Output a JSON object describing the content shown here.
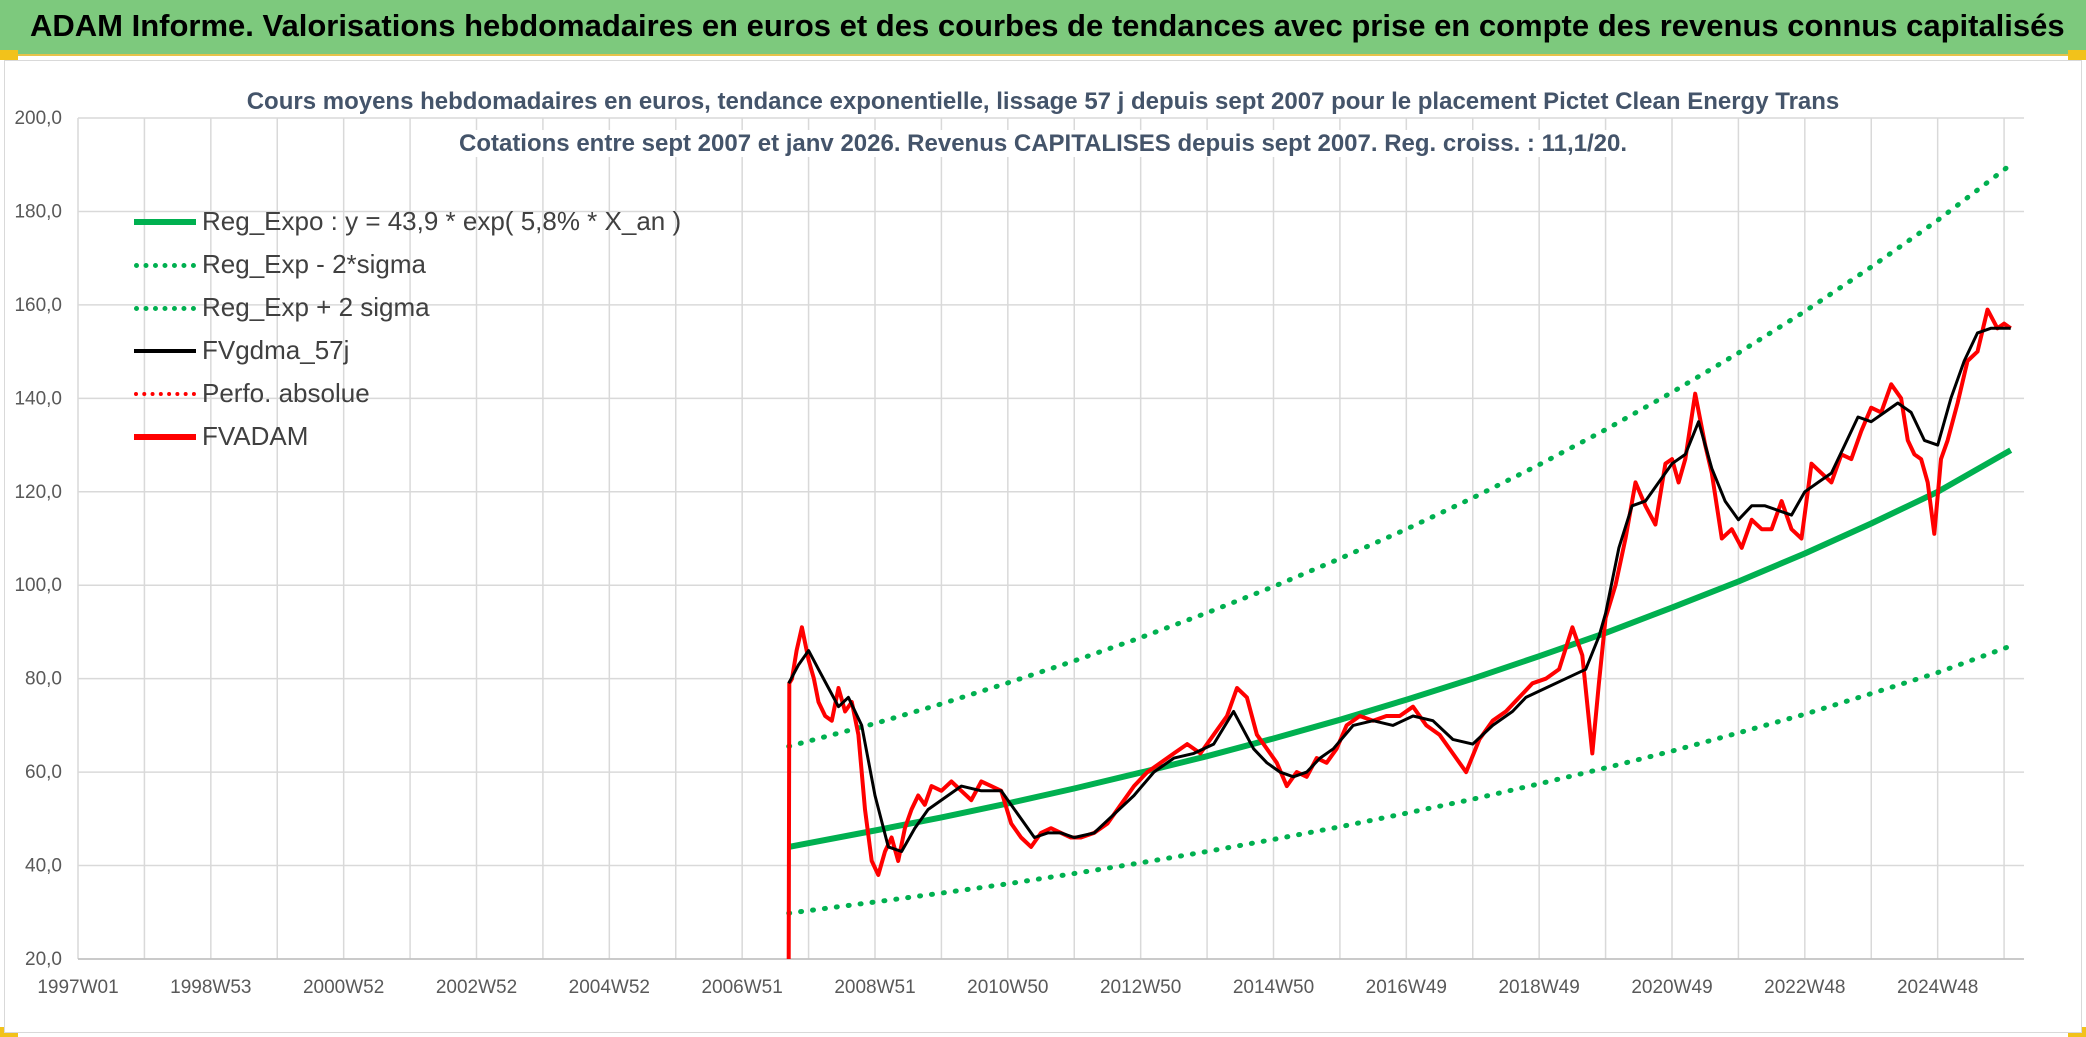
{
  "header": {
    "title": "ADAM Informe. Valorisations hebdomadaires en euros et des courbes de tendances avec prise en compte des revenus connus capitalisés"
  },
  "colors": {
    "banner": "#7dc97d",
    "green": "#00b050",
    "red": "#ff0000",
    "black": "#000000",
    "grid": "#d9d9d9"
  },
  "chart_data": {
    "type": "line",
    "title": "Cours moyens hebdomadaires en euros, tendance exponentielle, lissage 57 j depuis sept 2007 pour le placement Pictet Clean Energy Trans",
    "subtitle": "Cotations entre sept 2007 et janv 2026. Revenus CAPITALISES depuis sept 2007. Reg. croiss. : 11,1/20.",
    "xlabel": "",
    "ylabel": "",
    "x_axis": {
      "type": "time",
      "unit": "year",
      "range": [
        1997.0,
        2026.3
      ],
      "tick_values": [
        1997.0,
        1998.0,
        1999.0,
        2000.0,
        2001.0,
        2002.0,
        2003.0,
        2004.0,
        2005.0,
        2006.0,
        2007.0,
        2008.0,
        2009.0,
        2010.0,
        2011.0,
        2012.0,
        2013.0,
        2014.0,
        2015.0,
        2016.0,
        2017.0,
        2018.0,
        2019.0,
        2020.0,
        2021.0,
        2022.0,
        2023.0,
        2024.0,
        2025.0,
        2026.0
      ],
      "tick_labels": [
        "1997W01",
        "1998W53",
        "2000W52",
        "2002W52",
        "2004W52",
        "2006W51",
        "2008W51",
        "2010W50",
        "2012W50",
        "2014W50",
        "2016W49",
        "2018W49",
        "2020W49",
        "2022W48",
        "2024W48"
      ],
      "labeled_tick_values": [
        1997.0,
        1999.0,
        2001.0,
        2003.0,
        2005.0,
        2007.0,
        2009.0,
        2011.0,
        2013.0,
        2015.0,
        2017.0,
        2019.0,
        2021.0,
        2023.0,
        2025.0
      ]
    },
    "y_axis": {
      "range": [
        20,
        200
      ],
      "ticks": [
        20,
        40,
        60,
        80,
        100,
        120,
        140,
        160,
        180,
        200
      ],
      "tick_labels": [
        "20,0",
        "40,0",
        "60,0",
        "80,0",
        "100,0",
        "120,0",
        "140,0",
        "160,0",
        "180,0",
        "200,0"
      ]
    },
    "grid": true,
    "legend_position": "top-left",
    "series": [
      {
        "name": "Reg_Expo : y = 43,9 * exp( 5,8% *  X_an )",
        "color": "#00b050",
        "style": "solid",
        "x": [
          2007.7,
          2009.0,
          2010.0,
          2011.0,
          2012.0,
          2013.0,
          2014.0,
          2015.0,
          2016.0,
          2017.0,
          2018.0,
          2019.0,
          2020.0,
          2021.0,
          2022.0,
          2023.0,
          2024.0,
          2025.0,
          2026.1
        ],
        "y": [
          44.0,
          47.5,
          50.3,
          53.3,
          56.5,
          59.9,
          63.4,
          67.2,
          71.2,
          75.5,
          80.0,
          84.8,
          89.8,
          95.2,
          100.8,
          106.8,
          113.2,
          120.0,
          128.9
        ]
      },
      {
        "name": "Reg_Exp - 2*sigma",
        "color": "#00b050",
        "style": "dotted",
        "x": [
          2007.7,
          2009.0,
          2010.0,
          2011.0,
          2012.0,
          2013.0,
          2014.0,
          2015.0,
          2016.0,
          2017.0,
          2018.0,
          2019.0,
          2020.0,
          2021.0,
          2022.0,
          2023.0,
          2024.0,
          2025.0,
          2026.1
        ],
        "y": [
          29.8,
          32.2,
          34.1,
          36.1,
          38.3,
          40.6,
          43.0,
          45.6,
          48.3,
          51.2,
          54.2,
          57.5,
          60.9,
          64.5,
          68.4,
          72.4,
          76.8,
          81.3,
          87.0
        ]
      },
      {
        "name": "Reg_Exp + 2 sigma",
        "color": "#00b050",
        "style": "dotted",
        "x": [
          2007.7,
          2009.0,
          2010.0,
          2011.0,
          2012.0,
          2013.0,
          2014.0,
          2015.0,
          2016.0,
          2017.0,
          2018.0,
          2019.0,
          2020.0,
          2021.0,
          2022.0,
          2023.0,
          2024.0,
          2025.0,
          2026.1
        ],
        "y": [
          65.5,
          70.4,
          74.6,
          79.1,
          83.8,
          88.8,
          94.1,
          99.7,
          105.7,
          112.0,
          118.7,
          125.8,
          133.3,
          141.3,
          149.7,
          158.6,
          168.1,
          178.1,
          190.0
        ]
      },
      {
        "name": "FVgdma_57j",
        "color": "#000000",
        "style": "solid",
        "x": [
          2007.7,
          2007.85,
          2008.0,
          2008.15,
          2008.3,
          2008.45,
          2008.6,
          2008.8,
          2009.0,
          2009.2,
          2009.4,
          2009.6,
          2009.8,
          2010.0,
          2010.3,
          2010.6,
          2010.9,
          2011.2,
          2011.4,
          2011.6,
          2011.8,
          2012.0,
          2012.3,
          2012.6,
          2012.9,
          2013.2,
          2013.5,
          2013.8,
          2014.1,
          2014.4,
          2014.7,
          2014.9,
          2015.1,
          2015.3,
          2015.5,
          2015.7,
          2015.9,
          2016.2,
          2016.5,
          2016.8,
          2017.1,
          2017.4,
          2017.7,
          2018.0,
          2018.3,
          2018.6,
          2018.8,
          2019.1,
          2019.4,
          2019.7,
          2019.9,
          2020.0,
          2020.2,
          2020.4,
          2020.6,
          2020.8,
          2021.0,
          2021.2,
          2021.4,
          2021.6,
          2021.8,
          2022.0,
          2022.2,
          2022.4,
          2022.6,
          2022.8,
          2023.0,
          2023.2,
          2023.4,
          2023.6,
          2023.8,
          2024.0,
          2024.2,
          2024.4,
          2024.6,
          2024.8,
          2025.0,
          2025.2,
          2025.4,
          2025.6,
          2025.8,
          2026.0,
          2026.1
        ],
        "y": [
          79,
          83,
          86,
          82,
          78,
          74,
          76,
          70,
          55,
          44,
          43,
          48,
          52,
          54,
          57,
          56,
          56,
          50,
          46,
          47,
          47,
          46,
          47,
          51,
          55,
          60,
          63,
          64,
          66,
          73,
          65,
          62,
          60,
          59,
          60,
          63,
          65,
          70,
          71,
          70,
          72,
          71,
          67,
          66,
          70,
          73,
          76,
          78,
          80,
          82,
          89,
          94,
          108,
          117,
          118,
          122,
          126,
          128,
          135,
          125,
          118,
          114,
          117,
          117,
          116,
          115,
          120,
          122,
          124,
          130,
          136,
          135,
          137,
          139,
          137,
          131,
          130,
          140,
          148,
          154,
          155,
          155,
          155
        ]
      },
      {
        "name": "Perfo. absolue",
        "color": "#ff0000",
        "style": "dotted",
        "x": [],
        "y": []
      },
      {
        "name": "FVADAM",
        "color": "#ff0000",
        "style": "solid",
        "x": [
          2007.7,
          2007.71,
          2007.75,
          2007.82,
          2007.9,
          2008.0,
          2008.08,
          2008.15,
          2008.25,
          2008.35,
          2008.45,
          2008.55,
          2008.65,
          2008.75,
          2008.85,
          2008.95,
          2009.05,
          2009.15,
          2009.25,
          2009.35,
          2009.45,
          2009.55,
          2009.65,
          2009.75,
          2009.85,
          2010.0,
          2010.15,
          2010.3,
          2010.45,
          2010.6,
          2010.75,
          2010.9,
          2011.05,
          2011.2,
          2011.35,
          2011.5,
          2011.65,
          2011.8,
          2011.95,
          2012.1,
          2012.3,
          2012.5,
          2012.7,
          2012.9,
          2013.1,
          2013.3,
          2013.5,
          2013.7,
          2013.9,
          2014.1,
          2014.3,
          2014.45,
          2014.6,
          2014.75,
          2014.9,
          2015.05,
          2015.2,
          2015.35,
          2015.5,
          2015.65,
          2015.8,
          2015.95,
          2016.1,
          2016.3,
          2016.5,
          2016.7,
          2016.9,
          2017.1,
          2017.3,
          2017.5,
          2017.7,
          2017.9,
          2018.1,
          2018.3,
          2018.5,
          2018.7,
          2018.9,
          2019.1,
          2019.3,
          2019.5,
          2019.65,
          2019.8,
          2019.9,
          2020.0,
          2020.15,
          2020.3,
          2020.45,
          2020.6,
          2020.75,
          2020.9,
          2021.0,
          2021.1,
          2021.2,
          2021.35,
          2021.5,
          2021.6,
          2021.75,
          2021.9,
          2022.05,
          2022.2,
          2022.35,
          2022.5,
          2022.65,
          2022.8,
          2022.95,
          2023.1,
          2023.25,
          2023.4,
          2023.55,
          2023.7,
          2023.85,
          2024.0,
          2024.15,
          2024.3,
          2024.45,
          2024.55,
          2024.65,
          2024.75,
          2024.85,
          2024.95,
          2025.05,
          2025.15,
          2025.3,
          2025.45,
          2025.6,
          2025.75,
          2025.9,
          2026.0,
          2026.1
        ],
        "y": [
          20,
          79,
          80,
          86,
          91,
          84,
          80,
          75,
          72,
          71,
          78,
          73,
          75,
          68,
          52,
          41,
          38,
          43,
          46,
          41,
          48,
          52,
          55,
          53,
          57,
          56,
          58,
          56,
          54,
          58,
          57,
          56,
          49,
          46,
          44,
          47,
          48,
          47,
          46,
          46,
          47,
          49,
          53,
          57,
          60,
          62,
          64,
          66,
          64,
          68,
          72,
          78,
          76,
          68,
          65,
          62,
          57,
          60,
          59,
          63,
          62,
          65,
          70,
          72,
          71,
          72,
          72,
          74,
          70,
          68,
          64,
          60,
          67,
          71,
          73,
          76,
          79,
          80,
          82,
          91,
          85,
          64,
          79,
          93,
          100,
          110,
          122,
          117,
          113,
          126,
          127,
          122,
          127,
          141,
          130,
          124,
          110,
          112,
          108,
          114,
          112,
          112,
          118,
          112,
          110,
          126,
          124,
          122,
          128,
          127,
          133,
          138,
          137,
          143,
          140,
          131,
          128,
          127,
          122,
          111,
          127,
          131,
          139,
          148,
          150,
          159,
          155,
          156,
          155
        ]
      }
    ]
  }
}
